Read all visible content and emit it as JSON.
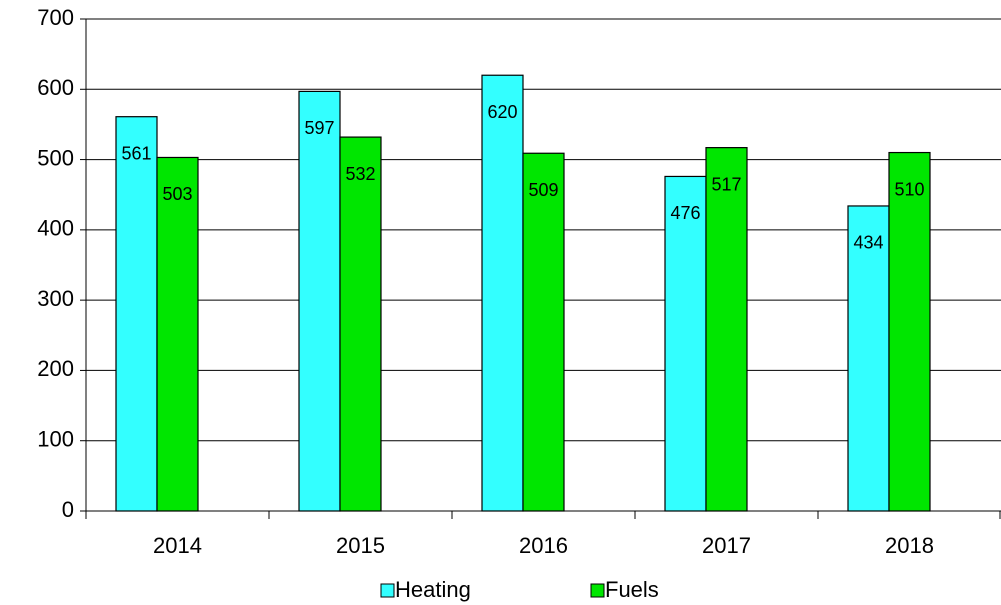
{
  "chart_data": {
    "type": "bar",
    "categories": [
      "2014",
      "2015",
      "2016",
      "2017",
      "2018"
    ],
    "series": [
      {
        "name": "Heating",
        "color": "#33ffff",
        "values": [
          561,
          597,
          620,
          476,
          434
        ]
      },
      {
        "name": "Fuels",
        "color": "#00e600",
        "values": [
          503,
          532,
          509,
          517,
          510
        ]
      }
    ],
    "ylim": [
      0,
      700
    ],
    "yticks": [
      0,
      100,
      200,
      300,
      400,
      500,
      600,
      700
    ],
    "grid": true,
    "legend": "bottom"
  }
}
